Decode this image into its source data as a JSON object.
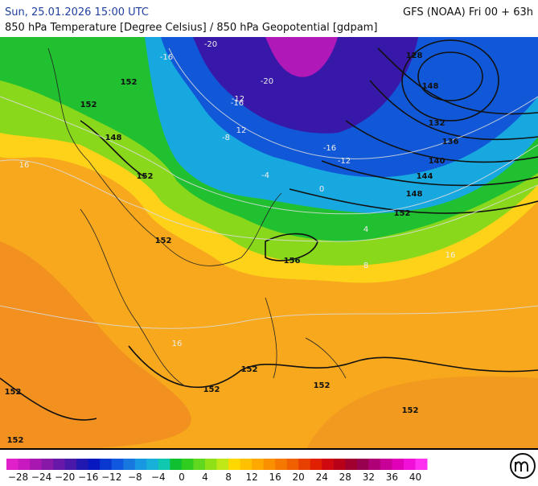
{
  "header": {
    "datetime": "Sun, 25.01.2026 15:00 UTC",
    "model": "GFS (NOAA) Fri 00 + 63h",
    "subtitle": "850 hPa Temperature [Degree Celsius] / 850 hPa Geopotential [gdpam]"
  },
  "map": {
    "labels": [
      "128",
      "132",
      "136",
      "140",
      "144",
      "148",
      "152",
      "148",
      "152",
      "152",
      "156",
      "152",
      "152",
      "152",
      "152",
      "152",
      "152",
      "148",
      "152",
      "152",
      "-20",
      "-16",
      "-20",
      "-12",
      "-16",
      "-12",
      "-8",
      "-4",
      "0",
      "4",
      "8",
      "16",
      "16",
      "-16",
      "12",
      "16"
    ]
  },
  "legend": {
    "labels": [
      "−28",
      "−24",
      "−20",
      "−16",
      "−12",
      "−8",
      "−4",
      "0",
      "4",
      "8",
      "12",
      "16",
      "20",
      "24",
      "28",
      "32",
      "36",
      "40"
    ],
    "colors": [
      "#e020c8",
      "#c818c0",
      "#a818b0",
      "#8818a8",
      "#6818a8",
      "#4818a8",
      "#2018b0",
      "#0818c0",
      "#0838d0",
      "#1058e0",
      "#1878e0",
      "#1898e0",
      "#18b0d8",
      "#10c8b0",
      "#10c030",
      "#30cc20",
      "#60d820",
      "#90e018",
      "#c0e818",
      "#ffd800",
      "#ffc000",
      "#ffa800",
      "#fa9000",
      "#f57800",
      "#f06000",
      "#e84000",
      "#e02000",
      "#d00810",
      "#b80018",
      "#a00030",
      "#980050",
      "#b00078",
      "#c80098",
      "#e000b8",
      "#f010d8",
      "#ff30f0"
    ]
  }
}
